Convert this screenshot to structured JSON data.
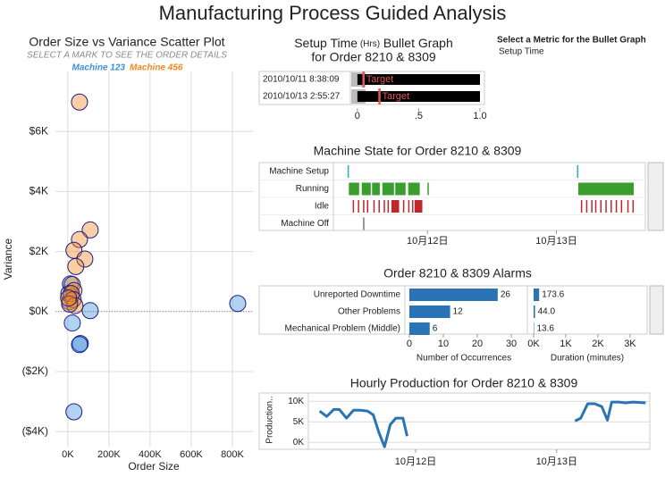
{
  "title": "Manufacturing Process Guided Analysis",
  "metric_selector": {
    "label": "Select a Metric for the Bullet Graph",
    "value": "Setup Time"
  },
  "chart_data": [
    {
      "type": "scatter",
      "title": "Order Size vs Variance Scatter Plot",
      "subtitle": "SELECT A MARK TO SEE THE ORDER DETAILS",
      "x_label": "Order Size",
      "y_label": "Variance",
      "xlim": [
        -60000,
        900000
      ],
      "ylim": [
        -4500,
        8000
      ],
      "xticks": [
        {
          "value": 0,
          "label": "0K"
        },
        {
          "value": 200000,
          "label": "200K"
        },
        {
          "value": 400000,
          "label": "400K"
        },
        {
          "value": 600000,
          "label": "600K"
        },
        {
          "value": 800000,
          "label": "800K"
        }
      ],
      "yticks": [
        {
          "value": -4000,
          "label": "($4K)"
        },
        {
          "value": -2000,
          "label": "($2K)"
        },
        {
          "value": 0,
          "label": "$0K"
        },
        {
          "value": 2000,
          "label": "$2K"
        },
        {
          "value": 4000,
          "label": "$4K"
        },
        {
          "value": 6000,
          "label": "$6K"
        }
      ],
      "grid": true,
      "series": [
        {
          "name": "Machine 123",
          "color": "#3b8fd9",
          "x": [
            826000,
            109000,
            22000,
            61000,
            57000,
            30000,
            13000,
            9000,
            17000,
            5000
          ],
          "values": [
            270,
            30,
            -380,
            -1065,
            -1100,
            -3340,
            920,
            330,
            500,
            600
          ]
        },
        {
          "name": "Machine 456",
          "color": "#f5871f",
          "x": [
            57000,
            109000,
            57000,
            30000,
            83000,
            39000,
            22000,
            30000,
            17000,
            26000,
            35000,
            9000,
            4000
          ],
          "values": [
            6980,
            2720,
            2400,
            2040,
            1750,
            1500,
            900,
            700,
            600,
            400,
            200,
            250,
            450
          ]
        }
      ]
    },
    {
      "type": "bullet",
      "title": "Setup Time",
      "title_unit": "(Hrs)",
      "title_suffix": "Bullet Graph",
      "subtitle": "for Order 8210 & 8309",
      "categories": [
        "2010/10/11 8:38:09",
        "2010/10/13 2:55:27"
      ],
      "values": [
        1.0,
        1.0
      ],
      "color": "#000000",
      "targets": [
        0.05,
        0.18
      ],
      "target_label": "Target",
      "target_color": "#e15759",
      "xlim": [
        -0.05,
        1.0
      ],
      "xticks": [
        0,
        {
          "value": 0.5,
          "label": ".5"
        },
        {
          "value": 1,
          "label": "1.0"
        }
      ]
    },
    {
      "type": "gantt",
      "title": "Machine State for Order 8210 & 8309",
      "categories": [
        "Machine Setup",
        "Running",
        "Idle",
        "Machine Off"
      ],
      "xlim": [
        11.27,
        13.69
      ],
      "xticks": [
        {
          "value": 12,
          "label": "10月12日"
        },
        {
          "value": 13,
          "label": "10月13日"
        }
      ],
      "series": [
        {
          "color": "#2ab0c5",
          "segments": [
            [
              11.38,
              11.39
            ],
            [
              13.16,
              13.17
            ]
          ]
        },
        {
          "color": "#3a9e2f",
          "segments": [
            [
              11.39,
              11.47
            ],
            [
              11.49,
              11.56
            ],
            [
              11.57,
              11.63
            ],
            [
              11.65,
              11.74
            ],
            [
              11.75,
              11.83
            ],
            [
              11.85,
              11.94
            ],
            [
              12.0,
              12.01
            ],
            [
              13.17,
              13.6
            ]
          ]
        },
        {
          "color": "#c0272d",
          "segments": [
            [
              11.42,
              11.43
            ],
            [
              11.46,
              11.47
            ],
            [
              11.5,
              11.51
            ],
            [
              11.53,
              11.54
            ],
            [
              11.58,
              11.59
            ],
            [
              11.62,
              11.63
            ],
            [
              11.66,
              11.67
            ],
            [
              11.69,
              11.7
            ],
            [
              11.72,
              11.78
            ],
            [
              11.81,
              11.82
            ],
            [
              11.85,
              11.86
            ],
            [
              11.88,
              11.89
            ],
            [
              11.9,
              11.96
            ],
            [
              13.19,
              13.2
            ],
            [
              13.23,
              13.24
            ],
            [
              13.27,
              13.28
            ],
            [
              13.3,
              13.31
            ],
            [
              13.34,
              13.35
            ],
            [
              13.38,
              13.39
            ],
            [
              13.42,
              13.43
            ],
            [
              13.46,
              13.47
            ],
            [
              13.5,
              13.51
            ],
            [
              13.55,
              13.56
            ],
            [
              13.59,
              13.6
            ]
          ]
        },
        {
          "color": "#777777",
          "segments": [
            [
              11.5,
              11.51
            ]
          ]
        }
      ]
    },
    {
      "type": "hbar",
      "title": "Order 8210 & 8309 Alarms",
      "categories": [
        "Unreported Downtime",
        "Other Problems",
        "Mechanical Problem (Middle)"
      ],
      "color": "#2a74b5",
      "panels": [
        {
          "x_label": "Number of Occurrences",
          "values": [
            26,
            12,
            6
          ],
          "xlim": [
            -1.3,
            33.4
          ],
          "xticks": [
            0,
            10,
            20,
            30
          ]
        },
        {
          "x_label": "Duration (minutes)",
          "values": [
            173.6,
            44.0,
            13.6
          ],
          "value_labels": [
            "173.6",
            "44.0",
            "13.6"
          ],
          "xlim": [
            -194,
            3530
          ],
          "xticks": [
            {
              "value": 0,
              "label": "0K"
            },
            {
              "value": 1000,
              "label": "1K"
            },
            {
              "value": 2000,
              "label": "2K"
            },
            {
              "value": 3000,
              "label": "3K"
            }
          ]
        }
      ]
    },
    {
      "type": "line",
      "title": "Hourly Production for Order 8210 & 8309",
      "y_label": "Production..",
      "color": "#2a74b5",
      "xlim": [
        11.24,
        13.66
      ],
      "ylim": [
        -1700,
        12000
      ],
      "xticks": [
        {
          "value": 12,
          "label": "10月12日"
        },
        {
          "value": 13,
          "label": "10月13日"
        }
      ],
      "yticks": [
        {
          "value": 0,
          "label": "0K"
        },
        {
          "value": 5000,
          "label": "5K"
        },
        {
          "value": 10000,
          "label": "10K"
        }
      ],
      "x": [
        11.32,
        11.37,
        11.42,
        11.46,
        11.51,
        11.56,
        11.61,
        11.66,
        11.7,
        11.74,
        11.78,
        11.82,
        11.86,
        11.91,
        11.94,
        12.5,
        13.13,
        13.17,
        13.22,
        13.27,
        13.32,
        13.36,
        13.39,
        13.44,
        13.49,
        13.54,
        13.63
      ],
      "values": [
        7600,
        6300,
        8000,
        8000,
        5900,
        7800,
        7800,
        7600,
        6700,
        2400,
        -1100,
        4300,
        5900,
        5900,
        1500,
        null,
        5200,
        5900,
        9400,
        9400,
        8700,
        5400,
        9800,
        9800,
        9600,
        9800,
        9600
      ]
    }
  ]
}
